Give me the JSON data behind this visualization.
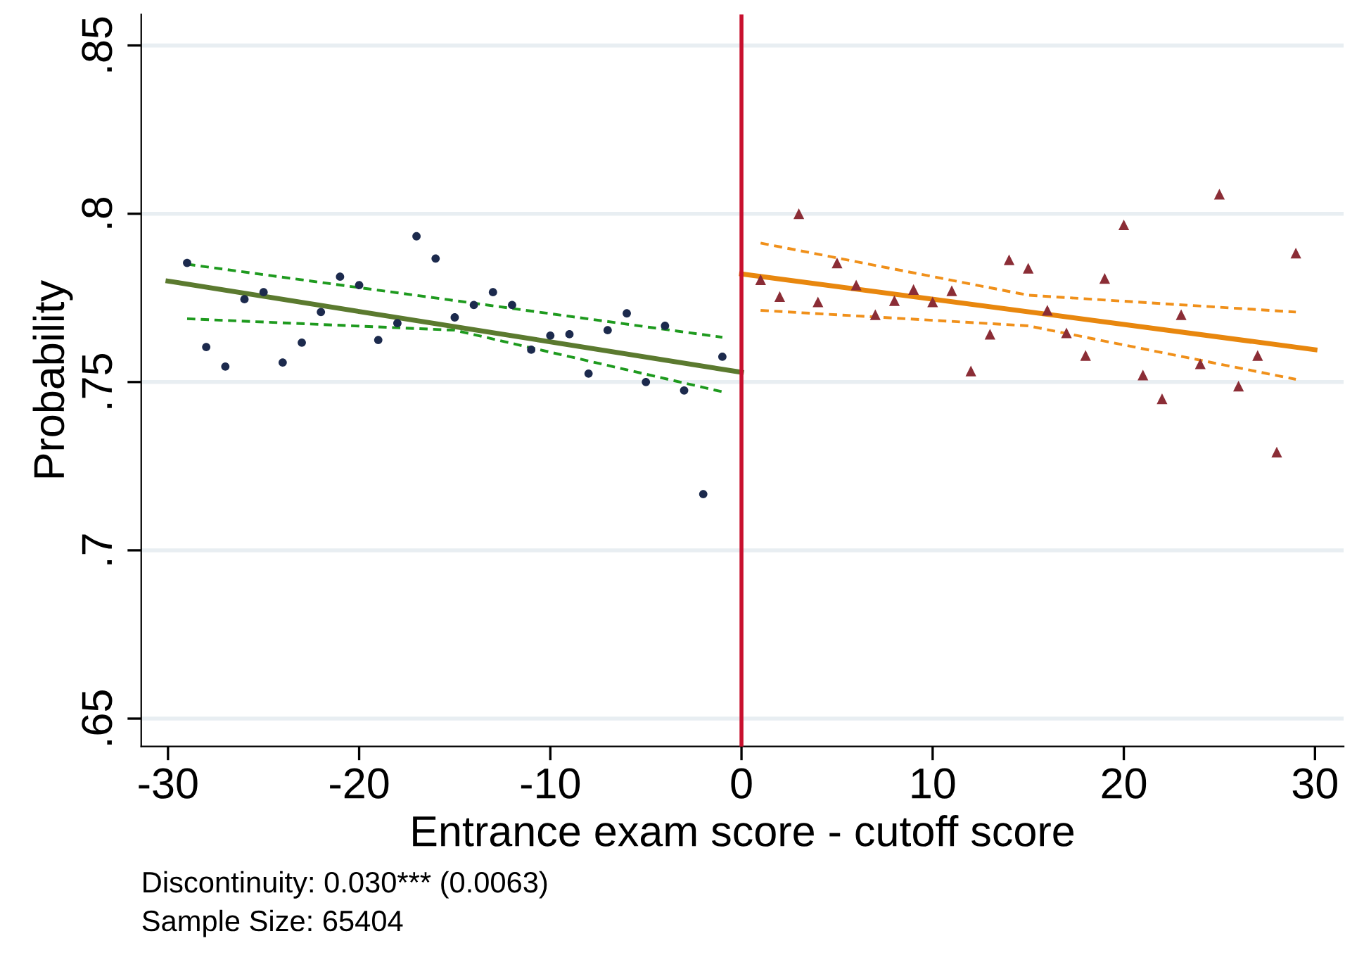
{
  "chart_data": {
    "type": "scatter",
    "xlabel": "Entrance exam score - cutoff score",
    "ylabel": "Probability",
    "xlim": [
      -31.4,
      31.5
    ],
    "ylim": [
      0.6417,
      0.8592
    ],
    "xticks": [
      -30,
      -20,
      -10,
      0,
      10,
      20,
      30
    ],
    "yticks": [
      {
        "value": 0.65,
        "label": ".65"
      },
      {
        "value": 0.7,
        "label": ".7"
      },
      {
        "value": 0.75,
        "label": ".75"
      },
      {
        "value": 0.8,
        "label": ".8"
      },
      {
        "value": 0.85,
        "label": ".85"
      }
    ],
    "grid": "y",
    "legend": false,
    "ref_lines": [
      {
        "axis": "x",
        "value": 0,
        "color": "#c8102e",
        "line_style": "solid"
      }
    ],
    "series": [
      {
        "marker": "circle",
        "color": "#1c2a4d",
        "x": [
          -29,
          -28,
          -27,
          -26,
          -25,
          -24,
          -23,
          -22,
          -21,
          -20,
          -19,
          -18,
          -17,
          -16,
          -15,
          -14,
          -13,
          -12,
          -11,
          -10,
          -9,
          -8,
          -7,
          -6,
          -5,
          -4,
          -3,
          -2,
          -1
        ],
        "values": [
          0.7854,
          0.7604,
          0.7546,
          0.7746,
          0.7767,
          0.7558,
          0.7617,
          0.7708,
          0.7813,
          0.7788,
          0.7625,
          0.7675,
          0.7933,
          0.7867,
          0.7692,
          0.7729,
          0.7767,
          0.7729,
          0.7596,
          0.7638,
          0.7642,
          0.7525,
          0.7654,
          0.7704,
          0.75,
          0.7667,
          0.7475,
          0.7167,
          0.7575
        ]
      },
      {
        "marker": "triangle",
        "color": "#8b2d36",
        "x": [
          1,
          2,
          3,
          4,
          5,
          6,
          7,
          8,
          9,
          10,
          11,
          12,
          13,
          14,
          15,
          16,
          17,
          18,
          19,
          20,
          21,
          22,
          23,
          24,
          25,
          26,
          27,
          28,
          29
        ],
        "values": [
          0.7804,
          0.7754,
          0.8,
          0.7738,
          0.7854,
          0.7788,
          0.77,
          0.7742,
          0.7775,
          0.7738,
          0.7771,
          0.7533,
          0.7642,
          0.7863,
          0.7838,
          0.7713,
          0.7646,
          0.7579,
          0.7808,
          0.7967,
          0.7521,
          0.745,
          0.77,
          0.7554,
          0.8058,
          0.7488,
          0.7579,
          0.7292,
          0.7883
        ]
      },
      {
        "type": "line",
        "line_style": "solid",
        "color": "#5b7a2f",
        "x": [
          -30,
          0
        ],
        "values": [
          0.78,
          0.7529
        ]
      },
      {
        "type": "line",
        "line_style": "dashed",
        "color": "#1e9a1e",
        "x": [
          -29,
          -15,
          -1
        ],
        "values": [
          0.785,
          0.7742,
          0.7633
        ]
      },
      {
        "type": "line",
        "line_style": "dashed",
        "color": "#1e9a1e",
        "x": [
          -29,
          -15,
          -1
        ],
        "values": [
          0.7688,
          0.7654,
          0.7471
        ]
      },
      {
        "type": "line",
        "line_style": "solid",
        "color": "#e8870e",
        "x": [
          0,
          30
        ],
        "values": [
          0.7821,
          0.7596
        ]
      },
      {
        "type": "line",
        "line_style": "dashed",
        "color": "#f0901a",
        "x": [
          1,
          15,
          29
        ],
        "values": [
          0.7913,
          0.7758,
          0.7708
        ]
      },
      {
        "type": "line",
        "line_style": "dashed",
        "color": "#f0901a",
        "x": [
          1,
          15,
          29
        ],
        "values": [
          0.7713,
          0.7667,
          0.7508
        ]
      }
    ],
    "annotations": [
      "Discontinuity: 0.030*** (0.0063)",
      "Sample Size: 65404"
    ]
  }
}
